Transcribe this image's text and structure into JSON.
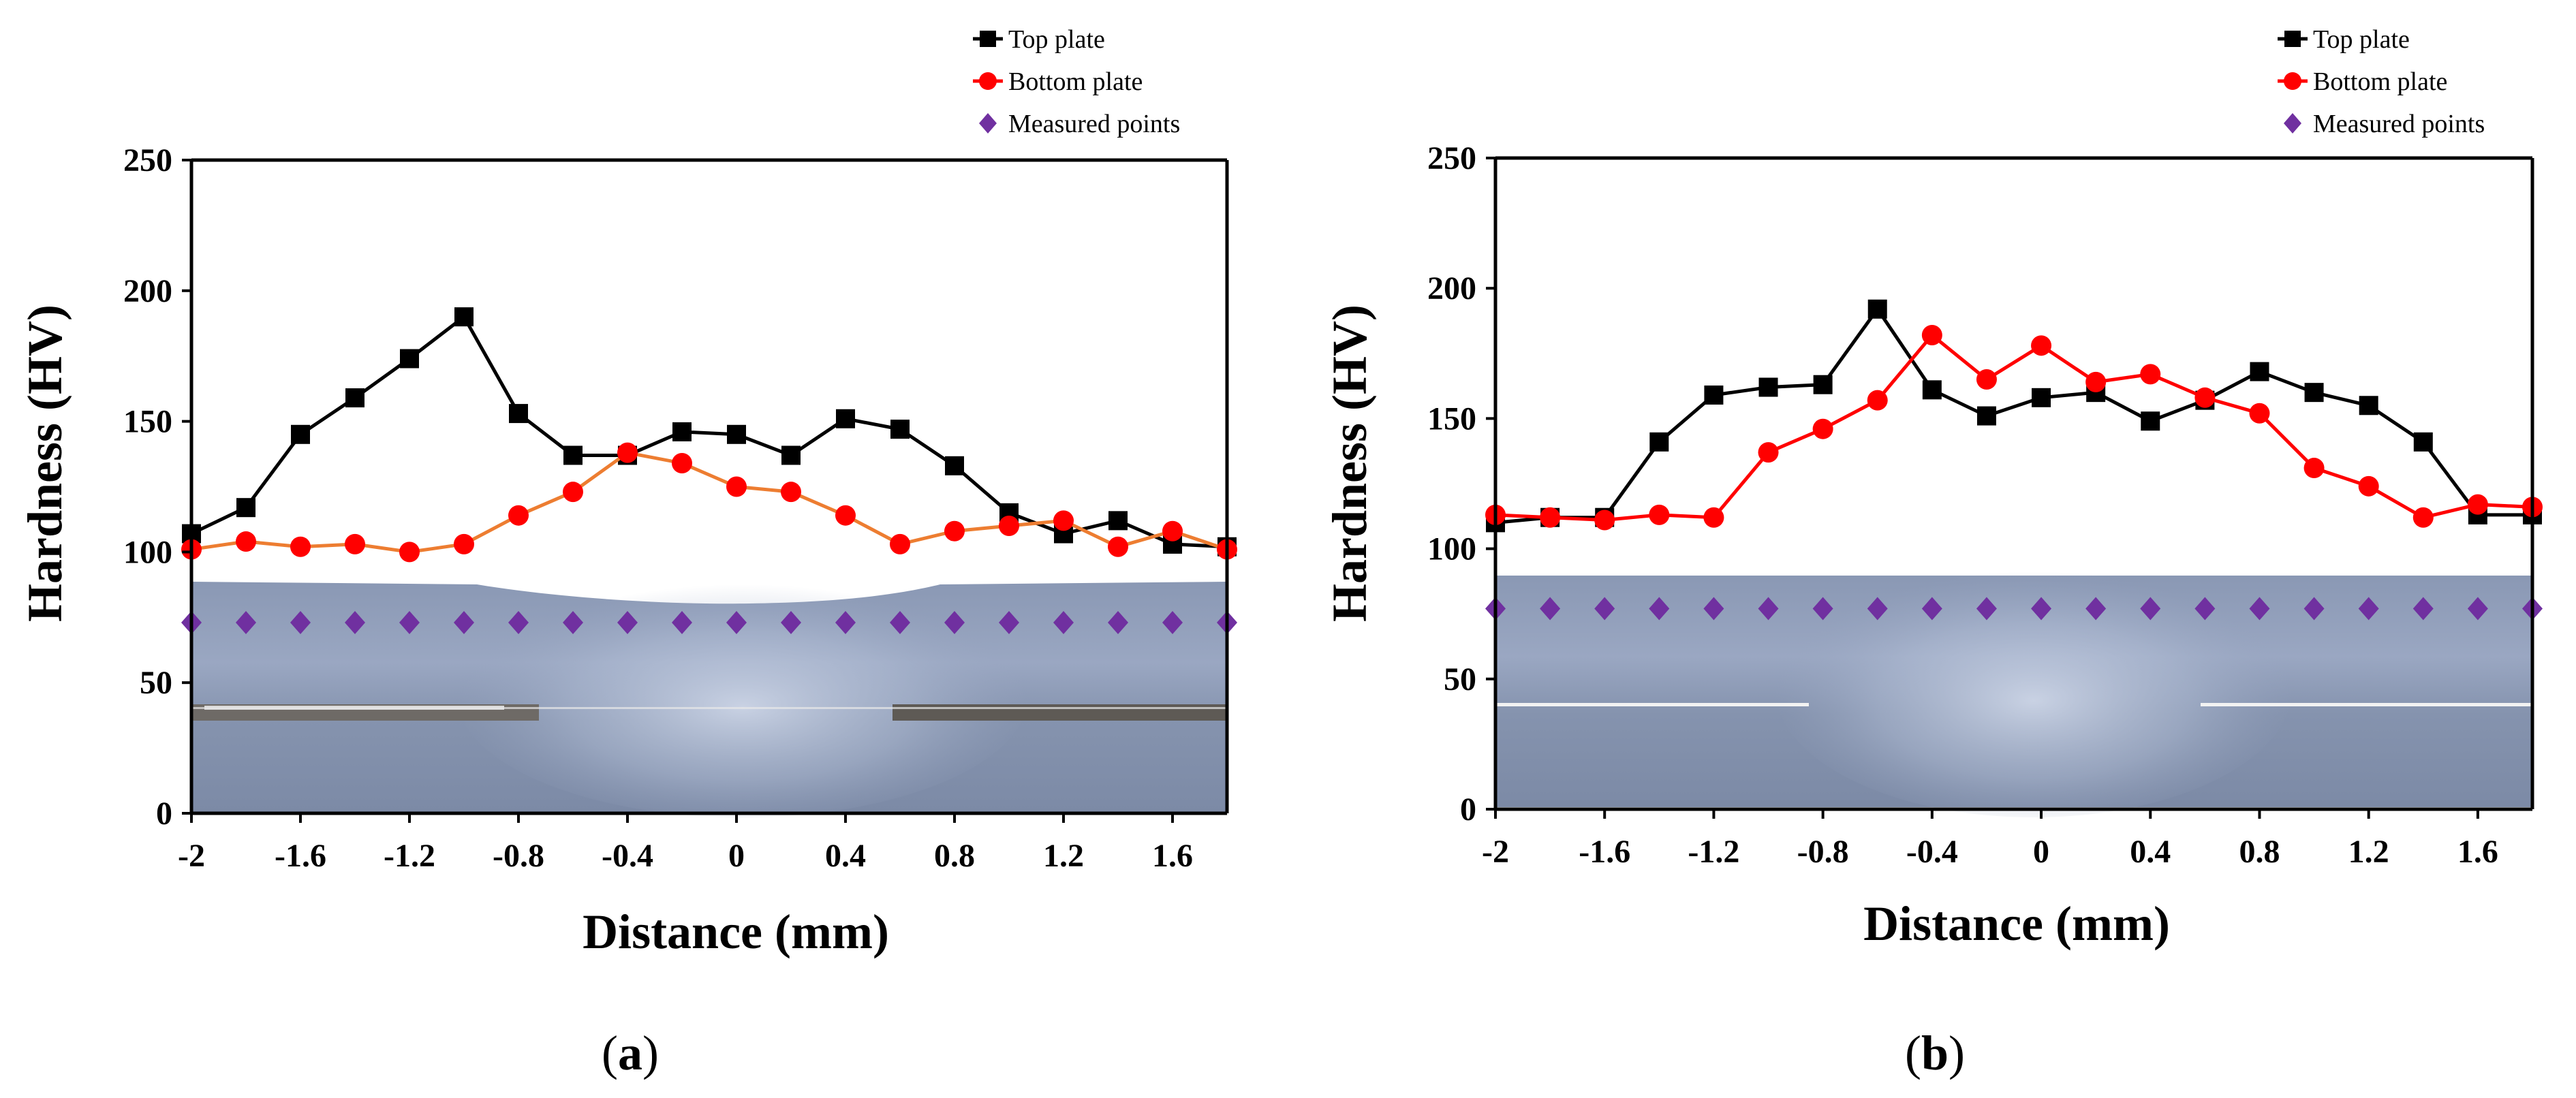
{
  "chart_data": [
    {
      "id": "a",
      "type": "line",
      "panel_open": "(",
      "panel_letter": "a",
      "panel_close": ")",
      "xlabel": "Distance (mm)",
      "ylabel": "Hardness (HV)",
      "xlim": [
        -2,
        1.8
      ],
      "ylim": [
        0,
        250
      ],
      "xticks": [
        -2,
        -1.6,
        -1.2,
        -0.8,
        -0.4,
        0,
        0.4,
        0.8,
        1.2,
        1.6
      ],
      "xtick_labels": [
        "-2",
        "-1.6",
        "-1.2",
        "-0.8",
        "-0.4",
        "0",
        "0.4",
        "0.8",
        "1.2",
        "1.6"
      ],
      "yticks": [
        0,
        50,
        100,
        150,
        200,
        250
      ],
      "ytick_labels": [
        "0",
        "50",
        "100",
        "150",
        "200",
        "250"
      ],
      "background": "weld cross-section micrograph",
      "legend_position": "top-right",
      "series": [
        {
          "name": "Top plate",
          "marker": "square",
          "color": "#000000",
          "line_color": "#000000",
          "x": [
            -2,
            -1.8,
            -1.6,
            -1.4,
            -1.2,
            -1.0,
            -0.8,
            -0.6,
            -0.4,
            -0.2,
            0,
            0.2,
            0.4,
            0.6,
            0.8,
            1.0,
            1.2,
            1.4,
            1.6,
            1.8
          ],
          "y": [
            107,
            117,
            145,
            159,
            174,
            190,
            153,
            137,
            137,
            146,
            145,
            137,
            151,
            147,
            133,
            115,
            107,
            112,
            103,
            102
          ]
        },
        {
          "name": "Bottom plate",
          "marker": "circle",
          "color": "#ff0000",
          "line_color": "#ed7d31",
          "x": [
            -2,
            -1.8,
            -1.6,
            -1.4,
            -1.2,
            -1.0,
            -0.8,
            -0.6,
            -0.4,
            -0.2,
            0,
            0.2,
            0.4,
            0.6,
            0.8,
            1.0,
            1.2,
            1.4,
            1.6,
            1.8
          ],
          "y": [
            101,
            104,
            102,
            103,
            100,
            103,
            114,
            123,
            138,
            134,
            125,
            123,
            114,
            103,
            108,
            110,
            112,
            102,
            108,
            101
          ]
        },
        {
          "name": "Measured points",
          "marker": "diamond",
          "color": "#7030a0",
          "line_color": "none",
          "x": [
            -2,
            -1.8,
            -1.6,
            -1.4,
            -1.2,
            -1.0,
            -0.8,
            -0.6,
            -0.4,
            -0.2,
            0,
            0.2,
            0.4,
            0.6,
            0.8,
            1.0,
            1.2,
            1.4,
            1.6,
            1.8
          ],
          "y": [
            73,
            73,
            73,
            73,
            73,
            73,
            73,
            73,
            73,
            73,
            73,
            73,
            73,
            73,
            73,
            73,
            73,
            73,
            73,
            73
          ]
        }
      ]
    },
    {
      "id": "b",
      "type": "line",
      "panel_open": "(",
      "panel_letter": "b",
      "panel_close": ")",
      "xlabel": "Distance (mm)",
      "ylabel": "Hardness (HV)",
      "xlim": [
        -2,
        1.8
      ],
      "ylim": [
        0,
        250
      ],
      "xticks": [
        -2,
        -1.6,
        -1.2,
        -0.8,
        -0.4,
        0,
        0.4,
        0.8,
        1.2,
        1.6
      ],
      "xtick_labels": [
        "-2",
        "-1.6",
        "-1.2",
        "-0.8",
        "-0.4",
        "0",
        "0.4",
        "0.8",
        "1.2",
        "1.6"
      ],
      "yticks": [
        0,
        50,
        100,
        150,
        200,
        250
      ],
      "ytick_labels": [
        "0",
        "50",
        "100",
        "150",
        "200",
        "250"
      ],
      "background": "weld cross-section micrograph",
      "legend_position": "top-right",
      "series": [
        {
          "name": "Top plate",
          "marker": "square",
          "color": "#000000",
          "line_color": "#000000",
          "x": [
            -2,
            -1.8,
            -1.6,
            -1.4,
            -1.2,
            -1.0,
            -0.8,
            -0.6,
            -0.4,
            -0.2,
            0,
            0.2,
            0.4,
            0.6,
            0.8,
            1.0,
            1.2,
            1.4,
            1.6,
            1.8
          ],
          "y": [
            110,
            112,
            112,
            141,
            159,
            162,
            163,
            192,
            161,
            151,
            158,
            160,
            149,
            157,
            168,
            160,
            155,
            141,
            113,
            113
          ]
        },
        {
          "name": "Bottom plate",
          "marker": "circle",
          "color": "#ff0000",
          "line_color": "#ff0000",
          "x": [
            -2,
            -1.8,
            -1.6,
            -1.4,
            -1.2,
            -1.0,
            -0.8,
            -0.6,
            -0.4,
            -0.2,
            0,
            0.2,
            0.4,
            0.6,
            0.8,
            1.0,
            1.2,
            1.4,
            1.6,
            1.8
          ],
          "y": [
            113,
            112,
            111,
            113,
            112,
            137,
            146,
            157,
            182,
            165,
            178,
            164,
            167,
            158,
            152,
            131,
            124,
            112,
            117,
            116
          ]
        },
        {
          "name": "Measured points",
          "marker": "diamond",
          "color": "#7030a0",
          "line_color": "none",
          "x": [
            -2,
            -1.8,
            -1.6,
            -1.4,
            -1.2,
            -1.0,
            -0.8,
            -0.6,
            -0.4,
            -0.2,
            0,
            0.2,
            0.4,
            0.6,
            0.8,
            1.0,
            1.2,
            1.4,
            1.6,
            1.8
          ],
          "y": [
            77,
            77,
            77,
            77,
            77,
            77,
            77,
            77,
            77,
            77,
            77,
            77,
            77,
            77,
            77,
            77,
            77,
            77,
            77,
            77
          ]
        }
      ]
    }
  ]
}
